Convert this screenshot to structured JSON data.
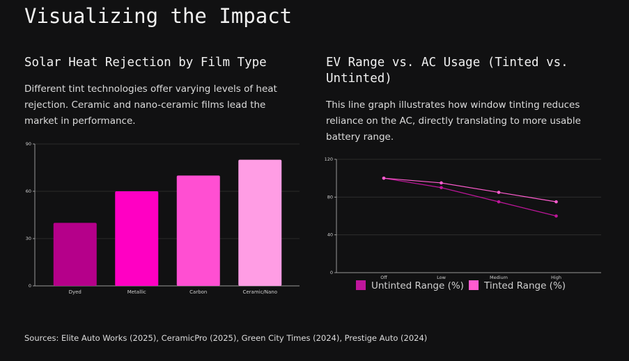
{
  "title": "Visualizing the Impact",
  "sources": "Sources: Elite Auto Works (2025), CeramicPro (2025), Green City Times (2024), Prestige Auto (2024)",
  "chart_data": [
    {
      "type": "bar",
      "title": "Solar Heat Rejection by Film Type",
      "description": "Different tint technologies offer varying levels of heat rejection. Ceramic and nano-ceramic films lead the market in performance.",
      "categories": [
        "Dyed",
        "Metallic",
        "Carbon",
        "Ceramic/Nano"
      ],
      "values": [
        40,
        60,
        70,
        80
      ],
      "colors": [
        "#b5008a",
        "#ff00c3",
        "#ff4fd2",
        "#ff9de4"
      ],
      "ylim": [
        0,
        90
      ],
      "yticks": [
        0,
        30,
        60,
        90
      ],
      "grid": true
    },
    {
      "type": "line",
      "title": "EV Range vs. AC Usage (Tinted vs. Untinted)",
      "description": "This line graph illustrates how window tinting reduces reliance on the AC, directly translating to more usable battery range.",
      "categories": [
        "Off",
        "Low",
        "Medium",
        "High"
      ],
      "series": [
        {
          "name": "Untinted Range (%)",
          "color": "#c0169c",
          "values": [
            100,
            90,
            75,
            60
          ]
        },
        {
          "name": "Tinted Range (%)",
          "color": "#ff5ccf",
          "values": [
            100,
            95,
            85,
            75
          ]
        }
      ],
      "ylim": [
        0,
        120
      ],
      "yticks": [
        0,
        40,
        80,
        120
      ],
      "grid": true,
      "legend": "bottom"
    }
  ]
}
